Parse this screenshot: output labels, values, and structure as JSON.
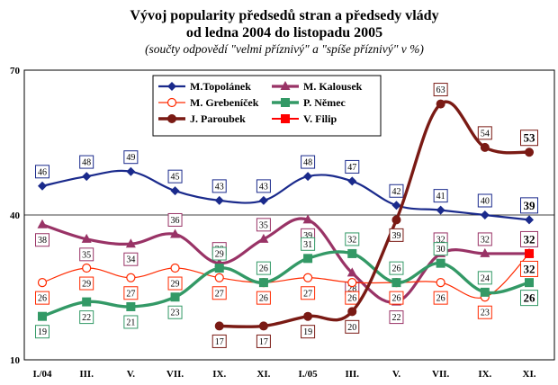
{
  "chart_data": {
    "type": "line",
    "title": "Vývoj popularity předsedů stran a předsedy vlády",
    "title2": "od ledna 2004 do listopadu 2005",
    "subtitle": "(součty odpovědí \"velmi příznivý\" a \"spíše příznivý\" v %)",
    "xlabel": "",
    "ylabel": "",
    "ylim": [
      10,
      70
    ],
    "yticks": [
      "10",
      "40",
      "70"
    ],
    "grid": false,
    "legend_position": "top-center",
    "x_ticks": [
      "I./04",
      "III.",
      "V.",
      "VII.",
      "IX.",
      "XI.",
      "I./05",
      "III.",
      "V.",
      "VII.",
      "IX.",
      "XI."
    ],
    "series": [
      {
        "name": "M.Topolánek",
        "color": "#1a2a8c",
        "marker": "diamond",
        "x": [
          0,
          1,
          2,
          3,
          4,
          5,
          6,
          7,
          8,
          9,
          10,
          11
        ],
        "values": [
          46,
          48,
          49,
          45,
          43,
          43,
          48,
          47,
          42,
          41,
          40,
          39
        ],
        "labels": [
          "46",
          "48",
          "49",
          "45",
          "43",
          "43",
          "48",
          "47",
          "42",
          "41",
          "40",
          "39"
        ],
        "label_pos": "above"
      },
      {
        "name": "M. Kalousek",
        "color": "#993366",
        "marker": "triangle",
        "x": [
          0,
          1,
          2,
          3,
          4,
          5,
          6,
          7,
          8,
          9,
          10,
          11
        ],
        "values": [
          38,
          35,
          34,
          36,
          30,
          35,
          39,
          28,
          22,
          32,
          32,
          32
        ],
        "labels": [
          "38",
          "35",
          "34",
          "36",
          "30",
          "35",
          "39",
          "28",
          "22",
          "32",
          "32",
          "32"
        ],
        "label_pos": [
          "below",
          "below",
          "below",
          "above",
          "above",
          "above",
          "below",
          "below",
          "below",
          "above",
          "above",
          "above"
        ]
      },
      {
        "name": "M. Grebeníček",
        "color": "#ff2a00",
        "marker": "circle-open",
        "x": [
          0,
          1,
          2,
          3,
          4,
          5,
          6,
          7,
          8,
          9,
          10,
          11
        ],
        "values": [
          26,
          29,
          27,
          29,
          27,
          26,
          27,
          26,
          26,
          26,
          23,
          32
        ],
        "labels": [
          "26",
          "29",
          "27",
          "29",
          "27",
          "26",
          "27",
          "26",
          "26",
          "26",
          "23",
          "32"
        ],
        "label_pos": "below"
      },
      {
        "name": "P. Němec",
        "color": "#339966",
        "marker": "square",
        "x": [
          0,
          1,
          2,
          3,
          4,
          5,
          6,
          7,
          8,
          9,
          10,
          11
        ],
        "values": [
          19,
          22,
          21,
          23,
          29,
          26,
          31,
          32,
          26,
          30,
          24,
          26
        ],
        "labels": [
          "19",
          "22",
          "21",
          "23",
          "29",
          "26",
          "31",
          "32",
          "26",
          "30",
          "24",
          "26"
        ],
        "label_pos": [
          "below",
          "below",
          "below",
          "below",
          "above",
          "above",
          "above",
          "above",
          "above",
          "above",
          "above",
          "below"
        ]
      },
      {
        "name": "J. Paroubek",
        "color": "#7a1a14",
        "marker": "circle",
        "x": [
          4,
          5,
          6,
          7,
          8,
          9,
          10,
          11
        ],
        "values": [
          17,
          17,
          19,
          20,
          39,
          63,
          54,
          53
        ],
        "labels": [
          "17",
          "17",
          "19",
          "20",
          "39",
          "63",
          "54",
          "53"
        ],
        "label_pos": [
          "below",
          "below",
          "below",
          "below",
          "below",
          "above",
          "above",
          "above"
        ]
      },
      {
        "name": "V. Filip",
        "color": "#ff0000",
        "marker": "square",
        "x": [
          11
        ],
        "values": [
          32
        ],
        "labels": [],
        "label_pos": "above"
      }
    ]
  }
}
